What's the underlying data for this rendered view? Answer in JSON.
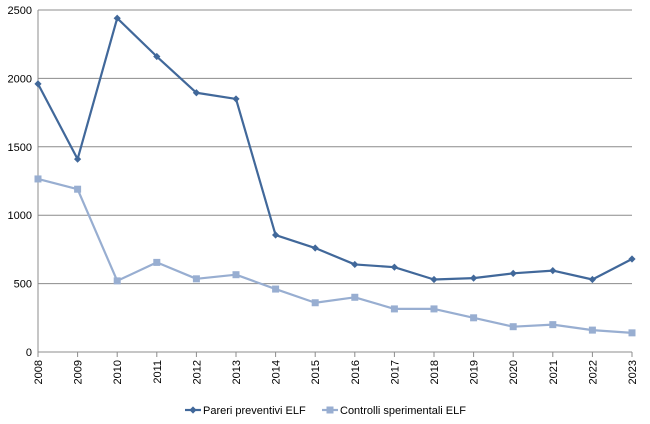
{
  "chart_data": {
    "type": "line",
    "title": "",
    "xlabel": "",
    "ylabel": "",
    "categories": [
      "2008",
      "2009",
      "2010",
      "2011",
      "2012",
      "2013",
      "2014",
      "2015",
      "2016",
      "2017",
      "2018",
      "2019",
      "2020",
      "2021",
      "2022",
      "2023"
    ],
    "ylim": [
      0,
      2500
    ],
    "yticks": [
      0,
      500,
      1000,
      1500,
      2000,
      2500
    ],
    "grid": true,
    "legend_position": "bottom",
    "series": [
      {
        "name": "Pareri preventivi ELF",
        "color": "#41689A",
        "marker": "diamond",
        "values": [
          1960,
          1410,
          2440,
          2160,
          1895,
          1850,
          855,
          760,
          640,
          620,
          530,
          540,
          575,
          595,
          530,
          680
        ]
      },
      {
        "name": "Controlli sperimentali ELF",
        "color": "#98AED1",
        "marker": "square",
        "values": [
          1265,
          1190,
          520,
          655,
          535,
          565,
          460,
          360,
          400,
          315,
          315,
          250,
          185,
          200,
          160,
          140
        ]
      }
    ]
  }
}
